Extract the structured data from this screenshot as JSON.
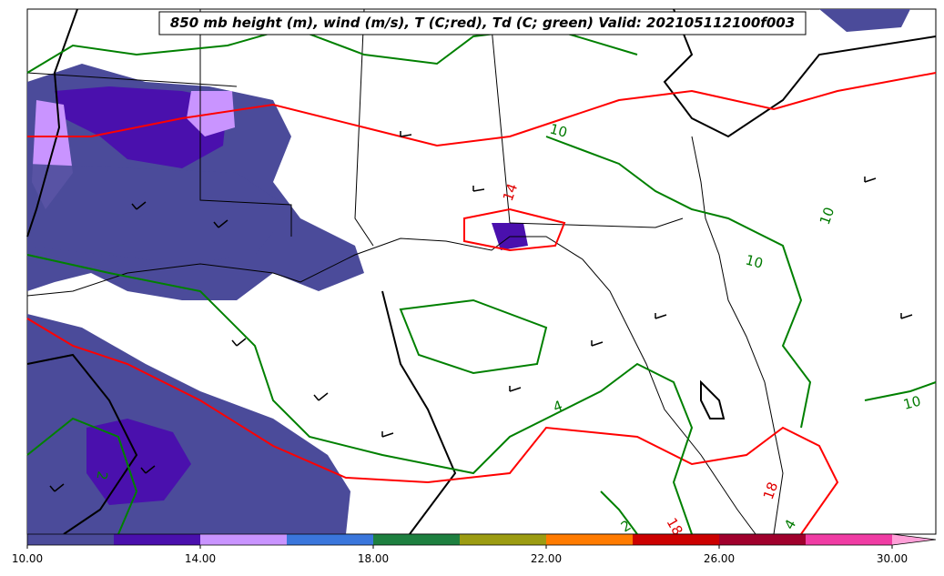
{
  "title": "850 mb height (m), wind (m/s), T (C;red), Td (C; green) Valid: 202105112100f003",
  "contour_labels": {
    "green": [
      "10",
      "10",
      "10",
      "10",
      "4",
      "4",
      "2",
      "2"
    ],
    "red": [
      "18",
      "18",
      "14"
    ]
  },
  "colorbar": {
    "bounds": [
      10,
      12,
      14,
      16,
      18,
      20,
      22,
      24,
      26,
      28,
      30
    ],
    "colors": [
      "#4b4b9a",
      "#4a10ad",
      "#c994ff",
      "#3a76dc",
      "#1e8040",
      "#9c9c12",
      "#ff7b00",
      "#cc0000",
      "#a0002c",
      "#f03ca4"
    ],
    "extend_color": "#ffa0d8",
    "ticks": [
      {
        "value": 10,
        "label": "10.00"
      },
      {
        "value": 14,
        "label": "14.00"
      },
      {
        "value": 18,
        "label": "18.00"
      },
      {
        "value": 22,
        "label": "22.00"
      },
      {
        "value": 26,
        "label": "26.00"
      },
      {
        "value": 30,
        "label": "30.00"
      }
    ]
  }
}
